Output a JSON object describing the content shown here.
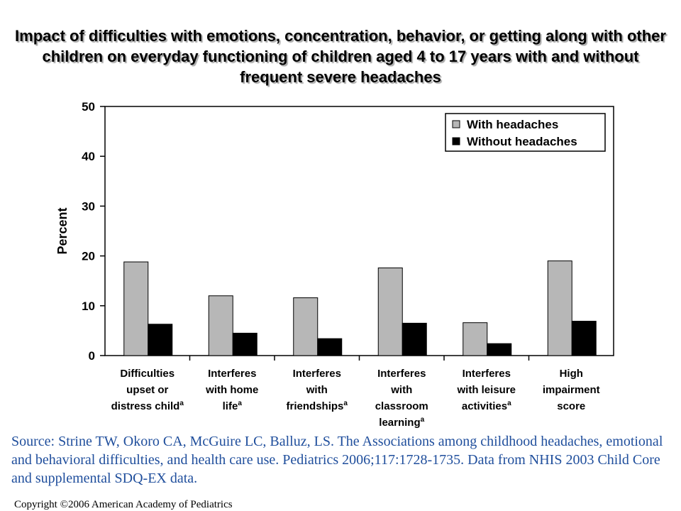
{
  "title": "Impact of difficulties with emotions, concentration, behavior, or getting along with other children on everyday functioning of children aged 4 to 17 years with and without frequent severe headaches",
  "source": "Source: Strine TW, Okoro CA, McGuire LC, Balluz, LS. The Associations among childhood headaches, emotional and behavioral difficulties, and health care use. Pediatrics 2006;117:1728-1735. Data from NHIS 2003 Child Core and supplemental SDQ-EX data.",
  "copyright": "Copyright ©2006 American Academy of Pediatrics",
  "colors": {
    "with_headaches": "#b7b7b7",
    "without_headaches": "#000000",
    "source_text": "#1f4e9c"
  },
  "chart_data": {
    "type": "bar",
    "title": "",
    "ylabel": "Percent",
    "xlabel": "",
    "ylim": [
      0,
      50
    ],
    "yticks": [
      "0",
      "10",
      "20",
      "30",
      "40",
      "50"
    ],
    "legend_position": "top-right",
    "grid": false,
    "categories": [
      [
        "Difficulties",
        "upset or",
        "distress child",
        "a"
      ],
      [
        "Interferes",
        "with home",
        "life",
        "a"
      ],
      [
        "Interferes",
        "with",
        "friendships",
        "a"
      ],
      [
        "Interferes",
        "with",
        "classroom",
        "learning",
        "a"
      ],
      [
        "Interferes",
        "with leisure",
        "activities",
        "a"
      ],
      [
        "High",
        "impairment",
        "score",
        ""
      ]
    ],
    "series": [
      {
        "name": "With headaches",
        "values": [
          18.8,
          12.0,
          11.6,
          17.6,
          6.6,
          19.0
        ]
      },
      {
        "name": "Without headaches",
        "values": [
          6.3,
          4.5,
          3.4,
          6.5,
          2.4,
          6.9
        ]
      }
    ]
  }
}
